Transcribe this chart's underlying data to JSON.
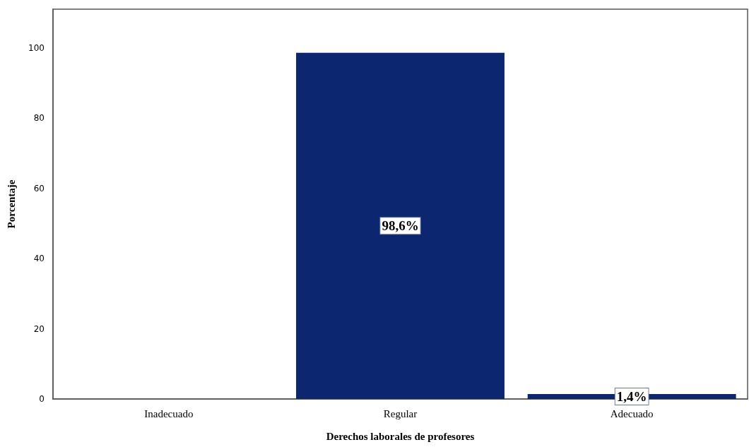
{
  "chart_data": {
    "type": "bar",
    "xlabel": "Derechos laborales de profesores",
    "ylabel": "Porcentaje",
    "categories": [
      "Inadecuado",
      "Regular",
      "Adecuado"
    ],
    "values": [
      0,
      98.6,
      1.4
    ],
    "value_labels": [
      null,
      "98,6%",
      "1,4%"
    ],
    "color": "#0c2670",
    "ylim": [
      0,
      111
    ],
    "yticks": [
      0,
      20,
      40,
      60,
      80,
      100
    ],
    "grid": false
  }
}
